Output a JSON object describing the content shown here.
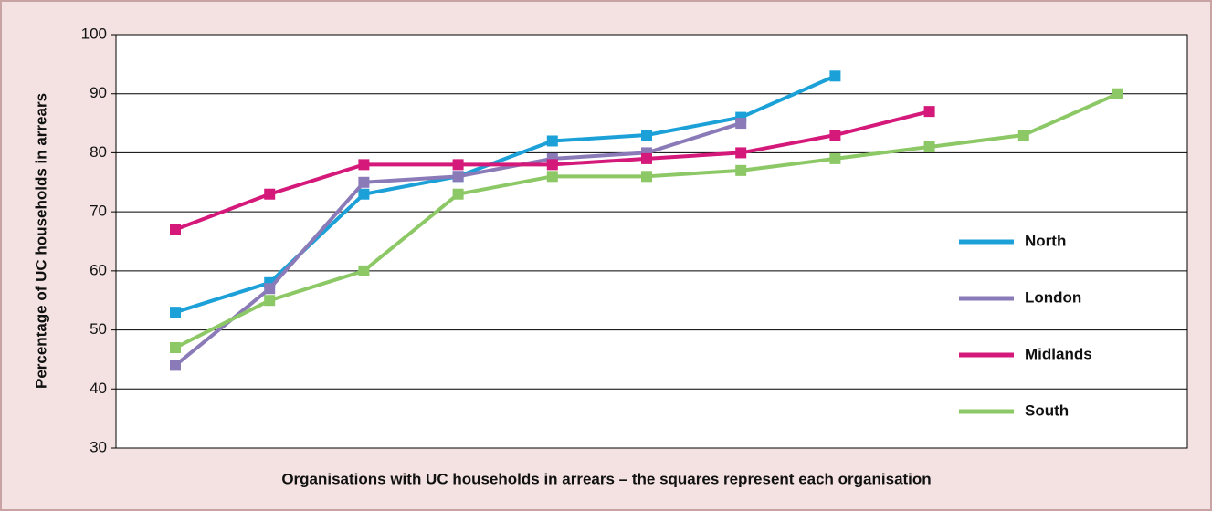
{
  "chart_data": {
    "type": "line",
    "ylabel": "Percentage of UC households in arrears",
    "xlabel": "Organisations with UC households in arrears – the squares represent each organisation",
    "categories": [
      null,
      null,
      null,
      null,
      null,
      null,
      null,
      null,
      null,
      null,
      null
    ],
    "ylim": [
      30,
      100
    ],
    "yticks": [
      30,
      40,
      50,
      60,
      70,
      80,
      90,
      100
    ],
    "grid": true,
    "legend": "right",
    "series": [
      {
        "name": "North",
        "color": "#1ba1d8",
        "values": [
          53,
          58,
          73,
          76,
          82,
          83,
          86,
          93,
          null,
          null,
          null
        ]
      },
      {
        "name": "London",
        "color": "#8a7ab8",
        "values": [
          44,
          57,
          75,
          76,
          79,
          80,
          85,
          null,
          null,
          null,
          null
        ]
      },
      {
        "name": "Midlands",
        "color": "#d4197a",
        "values": [
          67,
          73,
          78,
          78,
          78,
          79,
          80,
          83,
          87,
          null,
          null
        ]
      },
      {
        "name": "South",
        "color": "#8cc865",
        "values": [
          47,
          55,
          60,
          73,
          76,
          76,
          77,
          79,
          81,
          83,
          90
        ]
      }
    ]
  }
}
